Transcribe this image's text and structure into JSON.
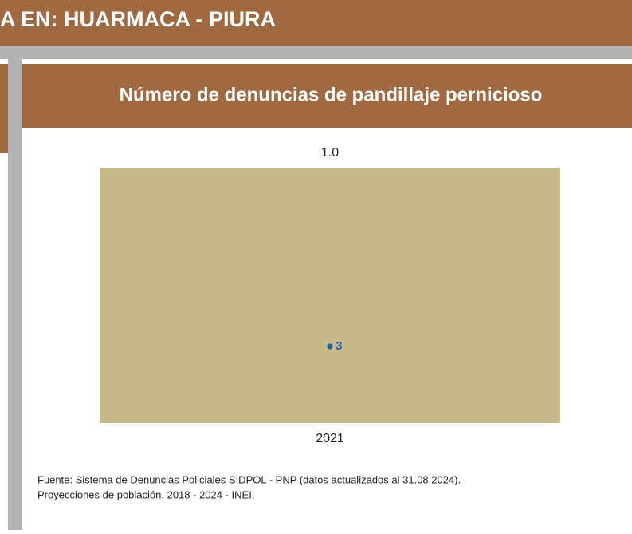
{
  "header": {
    "title": "A EN:  HUARMACA - PIURA"
  },
  "panel": {
    "title": "Número de denuncias de pandillaje pernicioso"
  },
  "chart_data": {
    "type": "bar",
    "categories": [
      "2021"
    ],
    "series": [
      {
        "color": "#c8b98a",
        "values": [
          1
        ],
        "value_labels": [
          "1.0"
        ]
      },
      {
        "color": "#1f5fa8",
        "values": [
          3
        ],
        "axis": "y2"
      }
    ],
    "ylim": [
      0,
      1
    ],
    "y2lim": [
      0,
      10
    ]
  },
  "source": {
    "lines": [
      "Fuente: Sistema de Denuncias Policiales SIDPOL - PNP (datos actualizados al 31.08.2024).",
      "Proyecciones de población, 2018 - 2024 - INEI."
    ]
  }
}
